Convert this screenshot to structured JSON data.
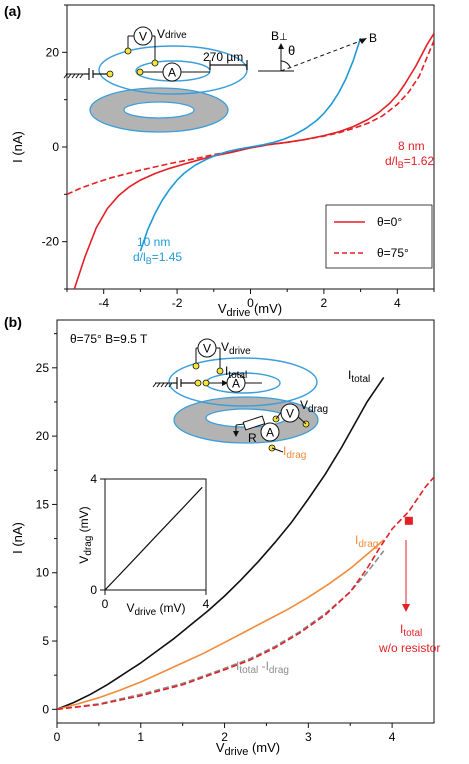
{
  "colors": {
    "red": "#e41f26",
    "blue": "#1e9ad6",
    "black": "#111111",
    "orange": "#f28a3c",
    "gray": "#8c8c8c",
    "sample_blue": "#3b9edb",
    "sample_gray": "#b3b3b3",
    "yellow_dot": "#f5e43a"
  },
  "panel_a": {
    "label": "(a)",
    "inset": {
      "vdrive": "V",
      "vdrive_sub": "drive",
      "meter_v": "V",
      "meter_a": "A",
      "scale": "270 µm",
      "b_perp": "B",
      "b_perp_sub": "⊥",
      "theta": "θ",
      "b": "B"
    },
    "annotations": {
      "nm8": "8 nm",
      "nm8_ratio": "d/l",
      "nm8_ratio_sub": "B",
      "nm8_ratio_val": "=1.62",
      "nm10": "10 nm",
      "nm10_ratio": "d/l",
      "nm10_ratio_sub": "B",
      "nm10_ratio_val": "=1.45"
    },
    "legend": {
      "placement": "bottom-right",
      "items": [
        {
          "label": "θ=0°",
          "style": "solid"
        },
        {
          "label": "θ=75°",
          "style": "dashed"
        }
      ]
    }
  },
  "panel_b": {
    "label": "(b)",
    "header": "θ=75°  B=9.5 T",
    "inset": {
      "vdrive": "V",
      "vdrive_sub": "drive",
      "itotal": "I",
      "itotal_sub": "total",
      "vdrag": "V",
      "vdrag_sub": "drag",
      "idrag": "I",
      "idrag_sub": "drag",
      "meter_v": "V",
      "meter_a": "A",
      "resistor": "R"
    },
    "labels": {
      "itotal": "I",
      "itotal_sub": "total",
      "idrag": "I",
      "idrag_sub": "drag",
      "diff_a": "I",
      "diff_a_sub": "total",
      "diff_mid": " -I",
      "diff_b_sub": "drag",
      "wo_a": "I",
      "wo_a_sub": "total",
      "wo_b": "w/o resistor"
    },
    "subplot": {
      "x_label": "V",
      "x_label_sub": "drive",
      "x_label_unit": " (mV)",
      "y_label": "V",
      "y_label_sub": "drag",
      "y_label_unit": " (mV)",
      "x_ticks": [
        "0",
        "4"
      ],
      "y_ticks": [
        "0",
        "4"
      ]
    }
  },
  "chart_data": [
    {
      "type": "line",
      "panel": "(a)",
      "xlabel": "V",
      "xlabel_sub": "drive",
      "xlabel_unit": " (mV)",
      "ylabel": "I (nA)",
      "xlim": [
        -5,
        5
      ],
      "ylim": [
        -30,
        30
      ],
      "x_ticks": [
        -4,
        -2,
        0,
        2,
        4
      ],
      "y_ticks": [
        -20,
        0,
        20
      ],
      "x_tick_labels": [
        "-4",
        "-2",
        "0",
        "2",
        "4"
      ],
      "y_tick_labels": [
        "-20",
        "0",
        "20"
      ],
      "grid": false,
      "series": [
        {
          "name": "θ=0°",
          "color": "#e41f26",
          "dash": false,
          "x": [
            -4.8,
            -4.5,
            -4.2,
            -3.9,
            -3.6,
            -3.3,
            -3.0,
            -2.6,
            -2.2,
            -1.8,
            -1.4,
            -1.0,
            -0.5,
            0,
            0.5,
            1.0,
            1.5,
            2.0,
            2.4,
            2.8,
            3.2,
            3.5,
            3.8,
            4.0,
            4.2,
            4.5,
            4.8,
            5.0
          ],
          "y": [
            -30,
            -23,
            -17,
            -13,
            -10.3,
            -8.4,
            -7.0,
            -5.6,
            -4.5,
            -3.6,
            -2.7,
            -1.9,
            -1.1,
            -0.2,
            0.5,
            1.0,
            1.6,
            2.4,
            3.2,
            4.3,
            5.8,
            7.3,
            9.3,
            11.0,
            13.2,
            17,
            21.5,
            24
          ]
        },
        {
          "name": "θ=75°",
          "color": "#e41f26",
          "dash": true,
          "x": [
            -5,
            -4.6,
            -4.2,
            -3.8,
            -3.4,
            -3.0,
            -2.6,
            -2.2,
            -1.8,
            -1.4,
            -1.0,
            -0.5,
            0,
            0.5,
            1.0,
            1.5,
            2.0,
            2.4,
            2.8,
            3.2,
            3.6,
            4.0,
            4.3,
            4.6,
            5.0
          ],
          "y": [
            -10.0,
            -8.6,
            -7.5,
            -6.5,
            -5.7,
            -4.9,
            -4.2,
            -3.5,
            -2.9,
            -2.3,
            -1.6,
            -0.9,
            -0.2,
            0.5,
            1.0,
            1.6,
            2.3,
            3.0,
            3.9,
            5.0,
            6.6,
            9.0,
            11.5,
            15,
            22.5
          ]
        },
        {
          "name": "10 nm",
          "color": "#1e9ad6",
          "dash": false,
          "x": [
            -3.0,
            -2.8,
            -2.6,
            -2.4,
            -2.2,
            -2.0,
            -1.8,
            -1.5,
            -1.2,
            -0.9,
            -0.6,
            -0.3,
            0,
            0.3,
            0.6,
            0.9,
            1.2,
            1.5,
            1.8,
            2.0,
            2.2,
            2.4,
            2.6,
            2.8,
            3.0
          ],
          "y": [
            -22,
            -17.5,
            -14,
            -11.2,
            -8.9,
            -7.0,
            -5.5,
            -3.8,
            -2.6,
            -1.6,
            -0.9,
            -0.4,
            0.0,
            0.4,
            0.9,
            1.6,
            2.6,
            3.9,
            5.6,
            7.1,
            9.0,
            11.4,
            14.4,
            18.3,
            23
          ]
        }
      ]
    },
    {
      "type": "line",
      "panel": "(b)",
      "xlabel": "V",
      "xlabel_sub": "drive",
      "xlabel_unit": " (mV)",
      "ylabel": "I (nA)",
      "xlim": [
        0,
        4.5
      ],
      "ylim": [
        -1,
        28.5
      ],
      "x_ticks": [
        0,
        1,
        2,
        3,
        4
      ],
      "y_ticks": [
        0,
        5,
        10,
        15,
        20,
        25
      ],
      "x_tick_labels": [
        "0",
        "1",
        "2",
        "3",
        "4"
      ],
      "y_tick_labels": [
        "0",
        "5",
        "10",
        "15",
        "20",
        "25"
      ],
      "grid": false,
      "series": [
        {
          "name": "I_total",
          "color": "#111111",
          "dash": false,
          "x": [
            0,
            0.2,
            0.4,
            0.6,
            0.8,
            1.0,
            1.2,
            1.4,
            1.6,
            1.8,
            2.0,
            2.2,
            2.4,
            2.6,
            2.8,
            3.0,
            3.2,
            3.4,
            3.6,
            3.7,
            3.8,
            3.9
          ],
          "y": [
            0,
            0.5,
            1.1,
            1.8,
            2.6,
            3.4,
            4.3,
            5.2,
            6.2,
            7.2,
            8.3,
            9.5,
            10.8,
            12.2,
            13.7,
            15.4,
            17.2,
            19.2,
            21.4,
            22.5,
            23.4,
            24.3
          ]
        },
        {
          "name": "I_drag",
          "color": "#f28a3c",
          "dash": false,
          "x": [
            0,
            0.25,
            0.5,
            0.75,
            1.0,
            1.25,
            1.5,
            1.75,
            2.0,
            2.25,
            2.5,
            2.75,
            3.0,
            3.25,
            3.5,
            3.75,
            3.9
          ],
          "y": [
            0,
            0.4,
            0.85,
            1.4,
            2.0,
            2.7,
            3.4,
            4.1,
            4.9,
            5.7,
            6.5,
            7.3,
            8.2,
            9.2,
            10.3,
            11.6,
            12.4
          ]
        },
        {
          "name": "I_total - I_drag",
          "color": "#8c8c8c",
          "dash": true,
          "x": [
            0,
            0.5,
            1.0,
            1.5,
            2.0,
            2.3,
            2.6,
            2.9,
            3.2,
            3.5,
            3.7,
            3.9
          ],
          "y": [
            0,
            0.4,
            1.1,
            1.9,
            3.0,
            3.7,
            4.6,
            5.7,
            7.0,
            8.6,
            10.0,
            11.6
          ]
        },
        {
          "name": "I_total w/o resistor",
          "color": "#e41f26",
          "dash": true,
          "x": [
            0,
            0.5,
            1.0,
            1.5,
            2.0,
            2.3,
            2.6,
            2.9,
            3.2,
            3.5,
            3.7,
            3.85,
            4.0,
            4.2,
            4.4,
            4.5
          ],
          "y": [
            0,
            0.35,
            1.0,
            1.8,
            2.9,
            3.6,
            4.5,
            5.6,
            6.9,
            8.6,
            10.3,
            11.8,
            13.2,
            14.5,
            16.3,
            17.0
          ]
        }
      ],
      "marker": {
        "x": 4.2,
        "y": 13.8
      }
    },
    {
      "type": "line",
      "panel": "(b) inset",
      "xlim": [
        0,
        4
      ],
      "ylim": [
        0,
        4
      ],
      "series": [
        {
          "name": "V_drag vs V_drive",
          "color": "#111111",
          "x": [
            0,
            1,
            2,
            3,
            3.85
          ],
          "y": [
            0,
            0.96,
            1.92,
            2.88,
            3.7
          ]
        }
      ]
    }
  ]
}
